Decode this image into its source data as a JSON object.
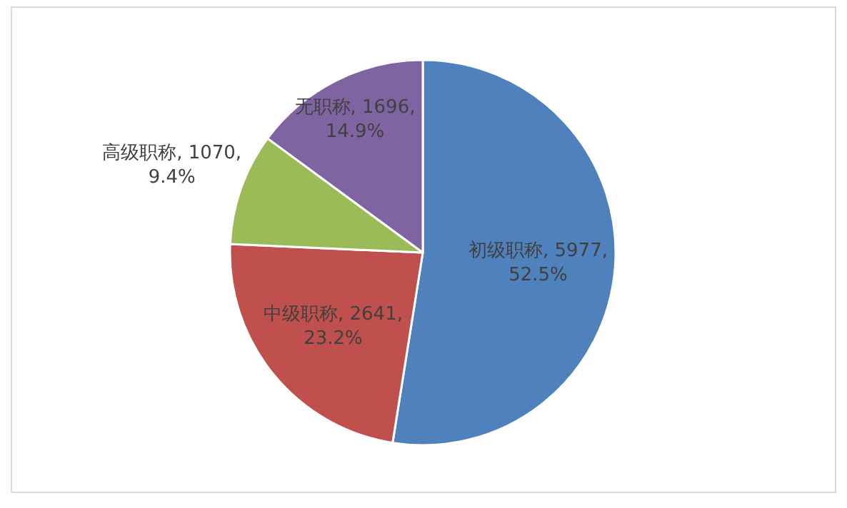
{
  "chart_data": {
    "type": "pie",
    "categories": [
      "初级职称",
      "中级职称",
      "高级职称",
      "无职称"
    ],
    "values": [
      5977,
      2641,
      1070,
      1696
    ],
    "value_labels": [
      "5977, 52.5%",
      "2641, 23.2%",
      "1070, 9.4%",
      "1696, 14.9%"
    ],
    "colors": [
      "#4f81bd",
      "#c0504d",
      "#9bbb59",
      "#8064a2"
    ],
    "legend": false
  }
}
